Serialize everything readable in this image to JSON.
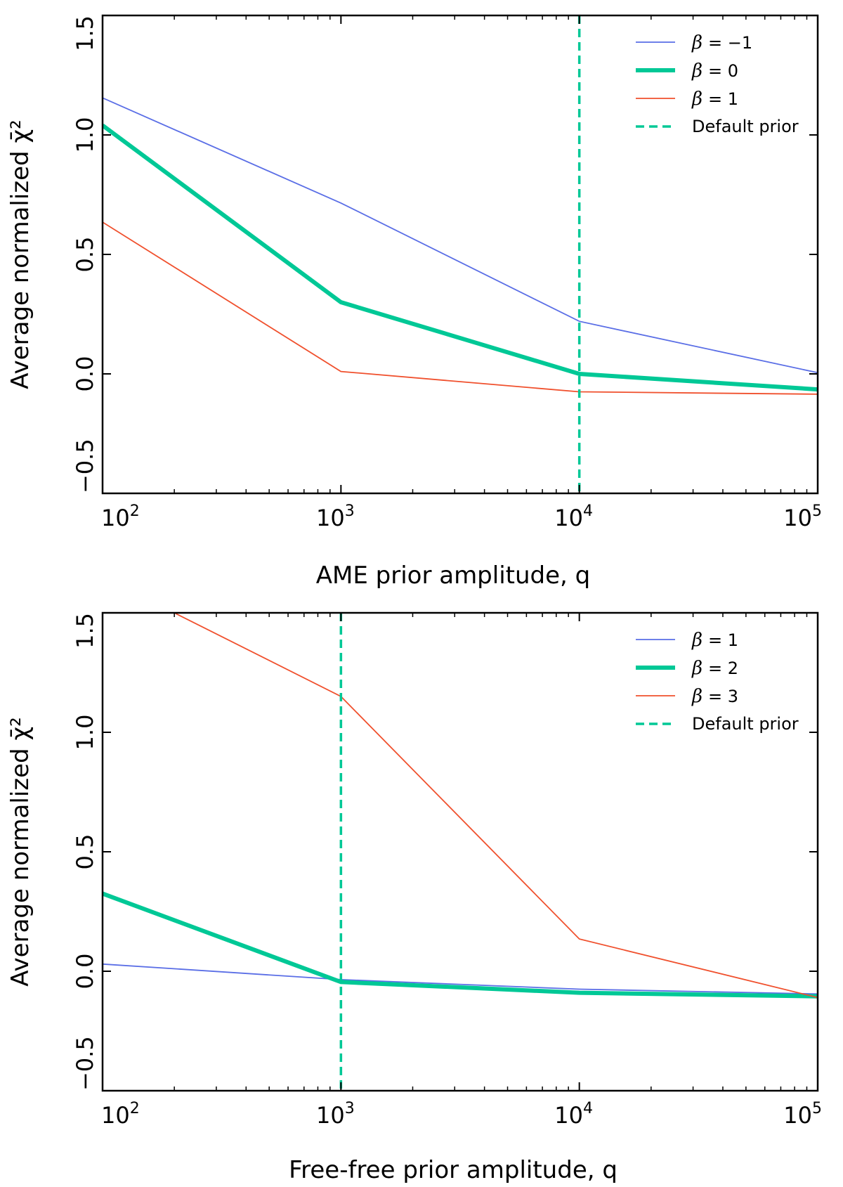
{
  "chart_data": [
    {
      "type": "line",
      "xlabel": "AME prior amplitude, q",
      "ylabel": "Average normalized χ̄²",
      "xscale": "log",
      "xlim": [
        100,
        100000
      ],
      "ylim": [
        -0.5,
        1.5
      ],
      "x_ticks": [
        {
          "base": "10",
          "exp": "2",
          "value": 100
        },
        {
          "base": "10",
          "exp": "3",
          "value": 1000
        },
        {
          "base": "10",
          "exp": "4",
          "value": 10000
        },
        {
          "base": "10",
          "exp": "5",
          "value": 100000
        }
      ],
      "y_ticks": [
        {
          "label": "−0.5",
          "value": -0.5
        },
        {
          "label": "0.0",
          "value": 0.0
        },
        {
          "label": "0.5",
          "value": 0.5
        },
        {
          "label": "1.0",
          "value": 1.0
        },
        {
          "label": "1.5",
          "value": 1.5
        }
      ],
      "legend_position": "top-right",
      "series": [
        {
          "name": "β = −1",
          "beta": "β",
          "rest": "= −1",
          "color": "#5a6ee6",
          "width": "thin",
          "x": [
            100,
            1000,
            10000,
            100000
          ],
          "y": [
            1.155,
            0.715,
            0.22,
            0.005
          ]
        },
        {
          "name": "β = 0",
          "beta": "β",
          "rest": "=    0",
          "color": "#00c896",
          "width": "thick",
          "x": [
            100,
            1000,
            10000,
            100000
          ],
          "y": [
            1.04,
            0.3,
            0.0,
            -0.065
          ]
        },
        {
          "name": "β = 1",
          "beta": "β",
          "rest": "=    1",
          "color": "#f0502d",
          "width": "thin",
          "x": [
            100,
            1000,
            10000,
            100000
          ],
          "y": [
            0.635,
            0.01,
            -0.075,
            -0.085
          ]
        }
      ],
      "vline": {
        "name": "Default prior",
        "x": 10000,
        "color": "#00c896"
      }
    },
    {
      "type": "line",
      "xlabel": "Free-free prior amplitude, q",
      "ylabel": "Average normalized χ̄²",
      "xscale": "log",
      "xlim": [
        100,
        100000
      ],
      "ylim": [
        -0.5,
        1.5
      ],
      "x_ticks": [
        {
          "base": "10",
          "exp": "2",
          "value": 100
        },
        {
          "base": "10",
          "exp": "3",
          "value": 1000
        },
        {
          "base": "10",
          "exp": "4",
          "value": 10000
        },
        {
          "base": "10",
          "exp": "5",
          "value": 100000
        }
      ],
      "y_ticks": [
        {
          "label": "−0.5",
          "value": -0.5
        },
        {
          "label": "0.0",
          "value": 0.0
        },
        {
          "label": "0.5",
          "value": 0.5
        },
        {
          "label": "1.0",
          "value": 1.0
        },
        {
          "label": "1.5",
          "value": 1.5
        }
      ],
      "legend_position": "top-right",
      "series": [
        {
          "name": "β = 1",
          "beta": "β",
          "rest": "= 1",
          "color": "#5a6ee6",
          "width": "thin",
          "x": [
            100,
            1000,
            10000,
            100000
          ],
          "y": [
            0.03,
            -0.035,
            -0.075,
            -0.095
          ]
        },
        {
          "name": "β = 2",
          "beta": "β",
          "rest": "= 2",
          "color": "#00c896",
          "width": "thick",
          "x": [
            100,
            1000,
            10000,
            100000
          ],
          "y": [
            0.325,
            -0.045,
            -0.09,
            -0.105
          ]
        },
        {
          "name": "β = 3",
          "beta": "β",
          "rest": "= 3",
          "color": "#f0502d",
          "width": "thin",
          "x": [
            100,
            200,
            1000,
            10000,
            100000
          ],
          "y": [
            1.6,
            1.5,
            1.15,
            0.135,
            -0.11
          ]
        }
      ],
      "vline": {
        "name": "Default prior",
        "x": 1000,
        "color": "#00c896"
      }
    }
  ]
}
